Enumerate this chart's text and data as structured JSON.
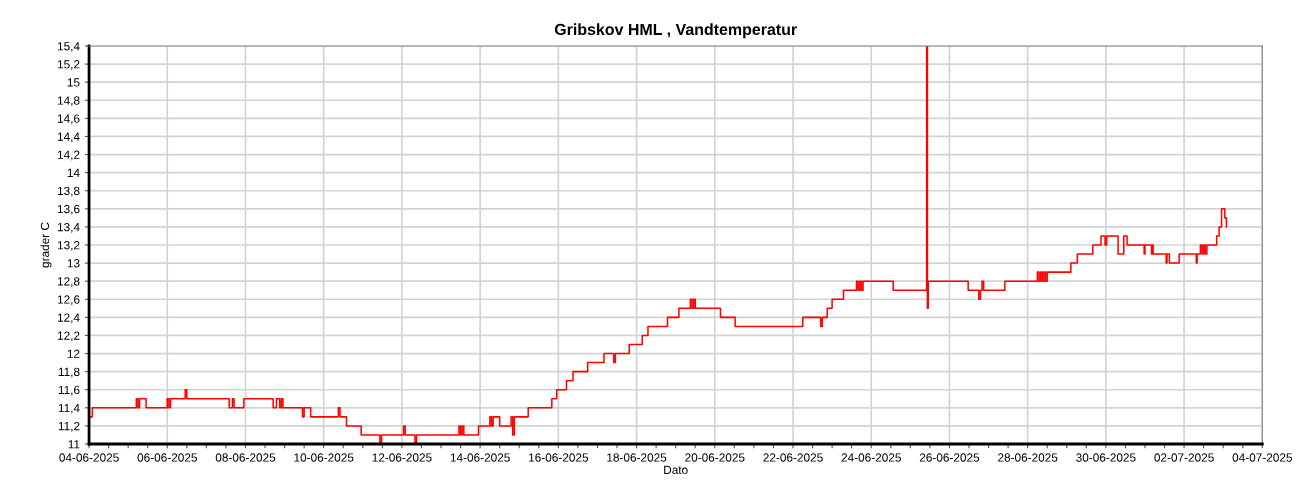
{
  "chart_data": {
    "type": "step",
    "title": "Gribskov HML , Vandtemperatur",
    "xlabel": "Dato",
    "ylabel": "grader C",
    "xlim": [
      "2025-06-04",
      "2025-07-04"
    ],
    "ylim": [
      11,
      15.4
    ],
    "xticks": [
      {
        "value": "2025-06-04",
        "label": "04-06-2025"
      },
      {
        "value": "2025-06-04T12:00",
        "label": null
      },
      {
        "value": "2025-06-05",
        "label": null
      },
      {
        "value": "2025-06-05T12:00",
        "label": null
      },
      {
        "value": "2025-06-06",
        "label": "06-06-2025"
      },
      {
        "value": "2025-06-06T12:00",
        "label": null
      },
      {
        "value": "2025-06-07",
        "label": null
      },
      {
        "value": "2025-06-07T12:00",
        "label": null
      },
      {
        "value": "2025-06-08",
        "label": "08-06-2025"
      },
      {
        "value": "2025-06-08T12:00",
        "label": null
      },
      {
        "value": "2025-06-09",
        "label": null
      },
      {
        "value": "2025-06-09T12:00",
        "label": null
      },
      {
        "value": "2025-06-10",
        "label": "10-06-2025"
      },
      {
        "value": "2025-06-10T12:00",
        "label": null
      },
      {
        "value": "2025-06-11",
        "label": null
      },
      {
        "value": "2025-06-11T12:00",
        "label": null
      },
      {
        "value": "2025-06-12",
        "label": "12-06-2025"
      },
      {
        "value": "2025-06-12T12:00",
        "label": null
      },
      {
        "value": "2025-06-13",
        "label": null
      },
      {
        "value": "2025-06-13T12:00",
        "label": null
      },
      {
        "value": "2025-06-14",
        "label": "14-06-2025"
      },
      {
        "value": "2025-06-14T12:00",
        "label": null
      },
      {
        "value": "2025-06-15",
        "label": null
      },
      {
        "value": "2025-06-15T12:00",
        "label": null
      },
      {
        "value": "2025-06-16",
        "label": "16-06-2025"
      },
      {
        "value": "2025-06-16T12:00",
        "label": null
      },
      {
        "value": "2025-06-17",
        "label": null
      },
      {
        "value": "2025-06-17T12:00",
        "label": null
      },
      {
        "value": "2025-06-18",
        "label": "18-06-2025"
      },
      {
        "value": "2025-06-18T12:00",
        "label": null
      },
      {
        "value": "2025-06-19",
        "label": null
      },
      {
        "value": "2025-06-19T12:00",
        "label": null
      },
      {
        "value": "2025-06-20",
        "label": "20-06-2025"
      },
      {
        "value": "2025-06-20T12:00",
        "label": null
      },
      {
        "value": "2025-06-21",
        "label": null
      },
      {
        "value": "2025-06-21T12:00",
        "label": null
      },
      {
        "value": "2025-06-22",
        "label": "22-06-2025"
      },
      {
        "value": "2025-06-22T12:00",
        "label": null
      },
      {
        "value": "2025-06-23",
        "label": null
      },
      {
        "value": "2025-06-23T12:00",
        "label": null
      },
      {
        "value": "2025-06-24",
        "label": "24-06-2025"
      },
      {
        "value": "2025-06-24T12:00",
        "label": null
      },
      {
        "value": "2025-06-25",
        "label": null
      },
      {
        "value": "2025-06-25T12:00",
        "label": null
      },
      {
        "value": "2025-06-26",
        "label": "26-06-2025"
      },
      {
        "value": "2025-06-26T12:00",
        "label": null
      },
      {
        "value": "2025-06-27",
        "label": null
      },
      {
        "value": "2025-06-27T12:00",
        "label": null
      },
      {
        "value": "2025-06-28",
        "label": "28-06-2025"
      },
      {
        "value": "2025-06-28T12:00",
        "label": null
      },
      {
        "value": "2025-06-29",
        "label": null
      },
      {
        "value": "2025-06-29T12:00",
        "label": null
      },
      {
        "value": "2025-06-30",
        "label": "30-06-2025"
      },
      {
        "value": "2025-06-30T12:00",
        "label": null
      },
      {
        "value": "2025-07-01",
        "label": null
      },
      {
        "value": "2025-07-01T12:00",
        "label": null
      },
      {
        "value": "2025-07-02",
        "label": "02-07-2025"
      },
      {
        "value": "2025-07-02T12:00",
        "label": null
      },
      {
        "value": "2025-07-03",
        "label": null
      },
      {
        "value": "2025-07-03T12:00",
        "label": null
      },
      {
        "value": "2025-07-04",
        "label": "04-07-2025"
      }
    ],
    "yticks": [
      11,
      {
        "value": 11.2,
        "label": "11,2"
      },
      {
        "value": 11.4,
        "label": "11,4"
      },
      {
        "value": 11.6,
        "label": "11,6"
      },
      {
        "value": 11.8,
        "label": "11,8"
      },
      12,
      {
        "value": 12.2,
        "label": "12,2"
      },
      {
        "value": 12.4,
        "label": "12,4"
      },
      {
        "value": 12.6,
        "label": "12,6"
      },
      {
        "value": 12.8,
        "label": "12,8"
      },
      13,
      {
        "value": 13.2,
        "label": "13,2"
      },
      {
        "value": 13.4,
        "label": "13,4"
      },
      {
        "value": 13.6,
        "label": "13,6"
      },
      {
        "value": 13.8,
        "label": "13,8"
      },
      14,
      {
        "value": 14.2,
        "label": "14,2"
      },
      {
        "value": 14.4,
        "label": "14,4"
      },
      {
        "value": 14.6,
        "label": "14,6"
      },
      {
        "value": 14.8,
        "label": "14,8"
      },
      15,
      {
        "value": 15.2,
        "label": "15,2"
      },
      {
        "value": 15.4,
        "label": "15,4"
      }
    ],
    "grid": true,
    "series": [
      {
        "color": "#ff0000",
        "x": [
          "2025-06-04T00:00",
          "2025-06-04T02:00",
          "2025-06-05T05:00",
          "2025-06-05T06:00",
          "2025-06-05T07:00",
          "2025-06-05T11:00",
          "2025-06-06T00:00",
          "2025-06-06T01:00",
          "2025-06-06T02:00",
          "2025-06-06T11:00",
          "2025-06-06T12:00",
          "2025-06-07T14:00",
          "2025-06-07T16:00",
          "2025-06-07T17:00",
          "2025-06-07T23:00",
          "2025-06-08T17:00",
          "2025-06-08T19:00",
          "2025-06-08T21:00",
          "2025-06-08T22:00",
          "2025-06-08T23:00",
          "2025-06-09T11:00",
          "2025-06-09T12:00",
          "2025-06-09T16:00",
          "2025-06-10T09:00",
          "2025-06-10T10:00",
          "2025-06-10T14:00",
          "2025-06-10T23:00",
          "2025-06-11T10:30",
          "2025-06-11T11:30",
          "2025-06-12T01:00",
          "2025-06-12T02:00",
          "2025-06-12T08:00",
          "2025-06-12T09:00",
          "2025-06-13T11:00",
          "2025-06-13T12:00",
          "2025-06-13T13:00",
          "2025-06-13T14:00",
          "2025-06-13T23:00",
          "2025-06-14T06:00",
          "2025-06-14T07:00",
          "2025-06-14T08:00",
          "2025-06-14T12:00",
          "2025-06-14T19:00",
          "2025-06-14T20:00",
          "2025-06-14T21:00",
          "2025-06-15T05:30",
          "2025-06-15T20:00",
          "2025-06-15T23:00",
          "2025-06-16T05:00",
          "2025-06-16T09:00",
          "2025-06-16T18:00",
          "2025-06-17T04:00",
          "2025-06-17T10:00",
          "2025-06-17T11:00",
          "2025-06-17T19:30",
          "2025-06-18T03:30",
          "2025-06-18T07:00",
          "2025-06-18T19:00",
          "2025-06-19T02:00",
          "2025-06-19T09:00",
          "2025-06-19T10:00",
          "2025-06-19T11:00",
          "2025-06-19T12:00",
          "2025-06-20T03:30",
          "2025-06-20T12:30",
          "2025-06-22T06:00",
          "2025-06-22T17:00",
          "2025-06-22T18:00",
          "2025-06-22T21:00",
          "2025-06-23T00:00",
          "2025-06-23T07:00",
          "2025-06-23T15:00",
          "2025-06-23T16:00",
          "2025-06-23T17:00",
          "2025-06-23T18:00",
          "2025-06-23T19:00",
          "2025-06-24T13:30",
          "2025-06-25T10:00",
          "2025-06-25T10:30",
          "2025-06-25T11:00",
          "2025-06-26T11:30",
          "2025-06-26T18:00",
          "2025-06-26T19:00",
          "2025-06-26T20:00",
          "2025-06-26T21:00",
          "2025-06-27T10:00",
          "2025-06-28T06:00",
          "2025-06-28T07:00",
          "2025-06-28T08:00",
          "2025-06-28T09:00",
          "2025-06-28T10:00",
          "2025-06-28T11:00",
          "2025-06-28T12:00",
          "2025-06-29T02:30",
          "2025-06-29T06:30",
          "2025-06-29T16:00",
          "2025-06-29T21:00",
          "2025-06-29T23:30",
          "2025-06-30T00:30",
          "2025-06-30T07:30",
          "2025-06-30T11:00",
          "2025-06-30T13:00",
          "2025-06-30T23:30",
          "2025-07-01T00:00",
          "2025-07-01T04:00",
          "2025-07-01T04:30",
          "2025-07-01T05:00",
          "2025-07-01T13:00",
          "2025-07-01T13:30",
          "2025-07-01T15:00",
          "2025-07-01T21:00",
          "2025-07-02T07:30",
          "2025-07-02T08:00",
          "2025-07-02T10:00",
          "2025-07-02T11:00",
          "2025-07-02T12:00",
          "2025-07-02T13:00",
          "2025-07-02T14:00",
          "2025-07-02T20:00",
          "2025-07-02T21:30",
          "2025-07-02T23:00",
          "2025-07-03T01:00",
          "2025-07-03T02:00"
        ],
        "values": [
          11.3,
          11.4,
          11.5,
          11.4,
          11.5,
          11.4,
          11.5,
          11.4,
          11.5,
          11.6,
          11.5,
          11.4,
          11.5,
          11.4,
          11.5,
          11.4,
          11.5,
          11.4,
          11.5,
          11.4,
          11.3,
          11.4,
          11.3,
          11.4,
          11.3,
          11.2,
          11.1,
          11.0,
          11.1,
          11.2,
          11.1,
          11.0,
          11.1,
          11.2,
          11.1,
          11.2,
          11.1,
          11.2,
          11.3,
          11.2,
          11.3,
          11.2,
          11.3,
          11.1,
          11.3,
          11.4,
          11.5,
          11.6,
          11.7,
          11.8,
          11.9,
          12.0,
          11.9,
          12.0,
          12.1,
          12.2,
          12.3,
          12.4,
          12.5,
          12.6,
          12.5,
          12.6,
          12.5,
          12.4,
          12.3,
          12.4,
          12.3,
          12.4,
          12.5,
          12.6,
          12.7,
          12.8,
          12.7,
          12.8,
          12.7,
          12.8,
          12.7,
          15.4,
          12.5,
          12.8,
          12.7,
          12.6,
          12.7,
          12.8,
          12.7,
          12.8,
          12.9,
          12.8,
          12.9,
          12.8,
          12.9,
          12.8,
          12.9,
          13.0,
          13.1,
          13.2,
          13.3,
          13.2,
          13.3,
          13.1,
          13.3,
          13.2,
          13.1,
          13.2,
          13.1,
          13.2,
          13.1,
          13.0,
          13.1,
          13.0,
          13.1,
          13.0,
          13.1,
          13.2,
          13.1,
          13.2,
          13.1,
          13.2,
          13.3,
          13.4,
          13.6,
          13.5,
          13.4
        ]
      }
    ]
  }
}
